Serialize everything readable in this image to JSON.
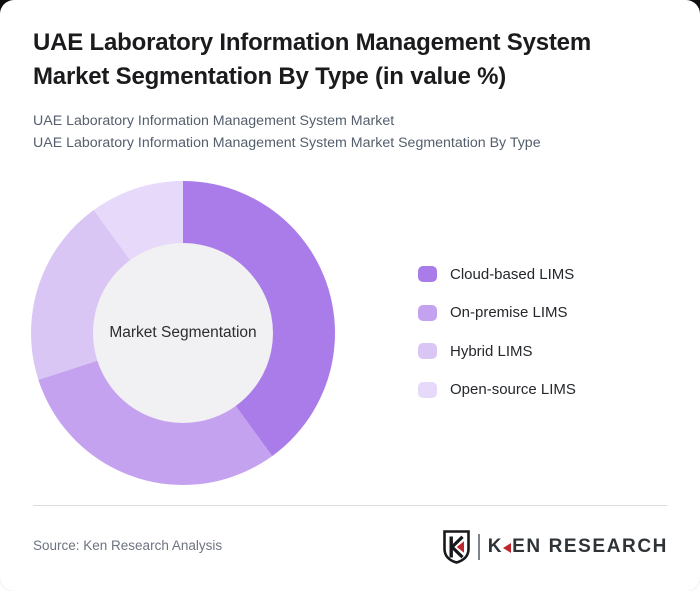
{
  "header": {
    "title": "UAE Laboratory Information Management System Market Segmentation By Type (in value %)",
    "subtitle_line1": "UAE Laboratory Information Management System Market",
    "subtitle_line2": "UAE Laboratory Information Management System Market Segmentation By Type"
  },
  "chart_data": {
    "type": "pie",
    "variant": "donut",
    "title": "UAE Laboratory Information Management System Market Segmentation By Type (in value %)",
    "center_label": "Market Segmentation",
    "start_angle_deg": 0,
    "direction": "clockwise",
    "legend_position": "right",
    "inner_circle_color": "#f1f0f2",
    "segments": [
      {
        "label": "Cloud-based LIMS",
        "value_pct": 40,
        "color": "#a97ce9"
      },
      {
        "label": "On-premise LIMS",
        "value_pct": 30,
        "color": "#c5a2f0"
      },
      {
        "label": "Hybrid LIMS",
        "value_pct": 20,
        "color": "#dac6f5"
      },
      {
        "label": "Open-source LIMS",
        "value_pct": 10,
        "color": "#e7d9f9"
      }
    ]
  },
  "footer": {
    "source": "Source: Ken Research Analysis",
    "logo": {
      "shield_letter": "K",
      "brand": "KEN RESEARCH",
      "accent_color": "#c0272d",
      "ink_color": "#17191c"
    }
  }
}
